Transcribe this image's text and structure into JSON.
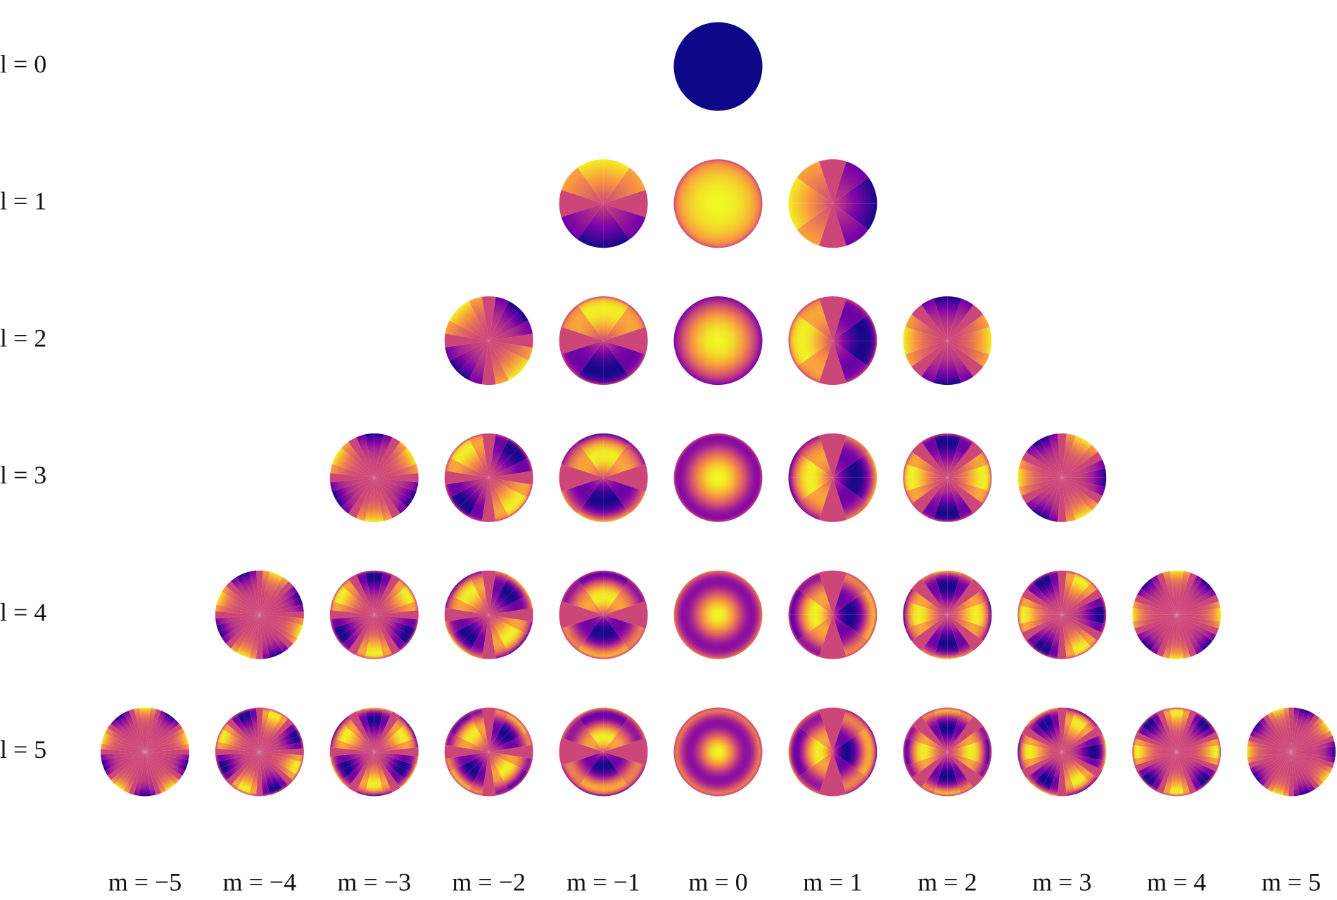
{
  "rows": {
    "labels": [
      "l = 0",
      "l = 1",
      "l = 2",
      "l = 3",
      "l = 4",
      "l = 5"
    ]
  },
  "columns": {
    "labels": [
      "m = −5",
      "m = −4",
      "m = −3",
      "m = −2",
      "m = −1",
      "m = 0",
      "m = 1",
      "m = 2",
      "m = 3",
      "m = 4",
      "m = 5"
    ]
  }
}
